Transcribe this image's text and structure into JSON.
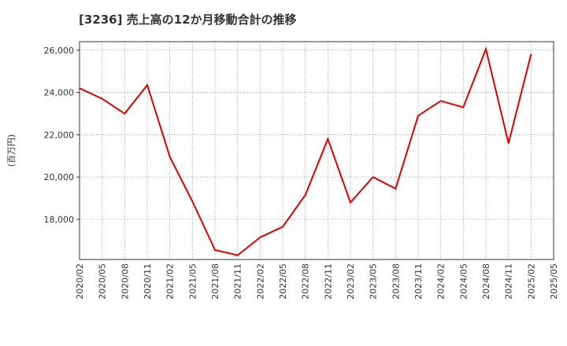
{
  "chart_data": {
    "type": "line",
    "title": "[3236]  売上高の12か月移動合計の推移",
    "xlabel": "",
    "ylabel": "(百万円)",
    "ylim": [
      16100,
      26400
    ],
    "yticks": [
      18000,
      20000,
      22000,
      24000,
      26000
    ],
    "ytick_labels": [
      "18,000",
      "20,000",
      "22,000",
      "24,000",
      "26,000"
    ],
    "xticks": [
      "2020/02",
      "2020/05",
      "2020/08",
      "2020/11",
      "2021/02",
      "2021/05",
      "2021/08",
      "2021/11",
      "2022/02",
      "2022/05",
      "2022/08",
      "2022/11",
      "2023/02",
      "2023/05",
      "2023/08",
      "2023/11",
      "2024/02",
      "2024/05",
      "2024/08",
      "2024/11",
      "2025/02",
      "2025/05"
    ],
    "grid": true,
    "series": [
      {
        "name": "売上高の12か月移動合計",
        "color": "#dd0000",
        "x": [
          "2020/02",
          "2020/05",
          "2020/08",
          "2020/11",
          "2021/02",
          "2021/05",
          "2021/08",
          "2021/11",
          "2022/02",
          "2022/05",
          "2022/08",
          "2022/11",
          "2023/02",
          "2023/05",
          "2023/08",
          "2023/11",
          "2024/02",
          "2024/05",
          "2024/08",
          "2024/11",
          "2025/02"
        ],
        "values": [
          24200,
          23700,
          23000,
          24350,
          20950,
          18850,
          16550,
          16300,
          17150,
          17650,
          19150,
          21800,
          18800,
          20000,
          19450,
          22900,
          23600,
          23300,
          26050,
          21600,
          25800
        ]
      }
    ]
  }
}
